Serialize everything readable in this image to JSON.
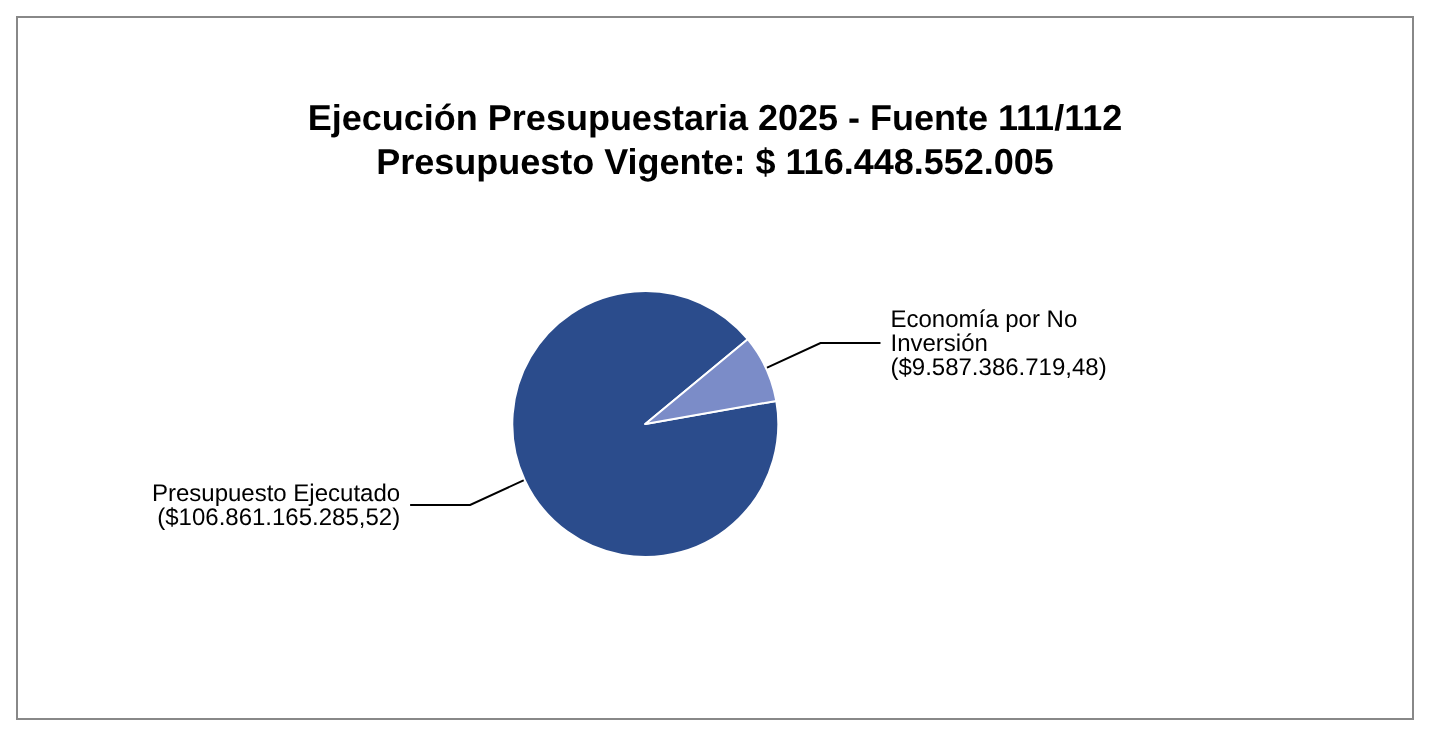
{
  "chart_data": {
    "type": "pie",
    "title": "Ejecución Presupuestaria 2025 - Fuente 111/112",
    "subtitle": "Presupuesto Vigente: $ 116.448.552.005",
    "categories": [
      "Presupuesto Ejecutado",
      "Economía por No Inversión"
    ],
    "values": [
      106861165285.52,
      9587386719.48
    ],
    "colors": [
      "#2b4c8c",
      "#7b8cc8"
    ],
    "value_labels": [
      "($106.861.165.285,52)",
      "($9.587.386.719,48)"
    ],
    "legend": false
  }
}
